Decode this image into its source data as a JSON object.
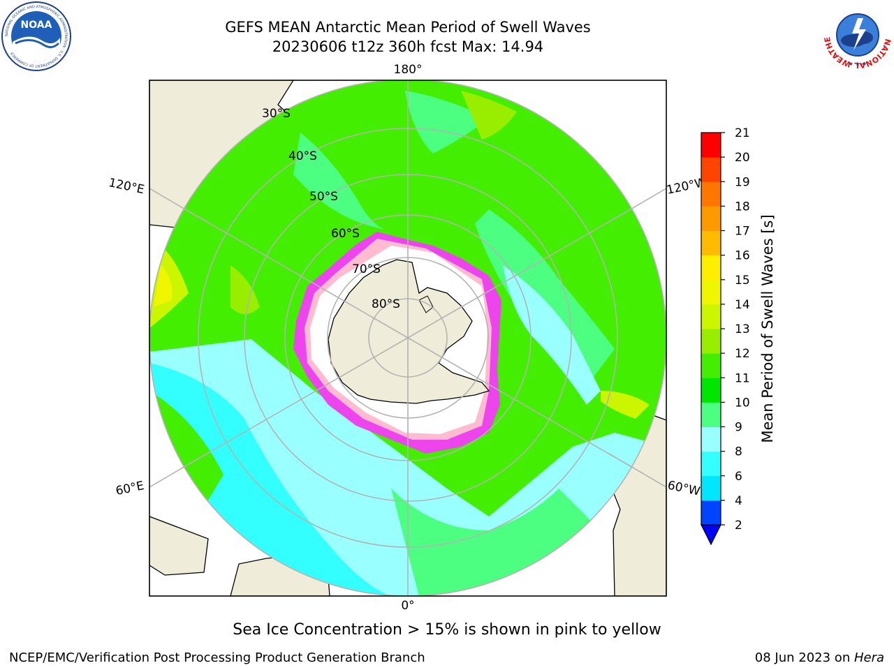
{
  "title": {
    "line1": "GEFS MEAN Antarctic Mean Period of Swell Waves",
    "line2": "20230606 t12z 360h fcst   Max: 14.94"
  },
  "logos": {
    "left": {
      "icon": "noaa-logo-icon",
      "text": "NOAA",
      "ring_text": "NATIONAL OCEANIC AND ATMOSPHERIC ADMINISTRATION · U.S. DEPARTMENT OF COMMERCE"
    },
    "right": {
      "icon": "nws-logo-icon",
      "ring_text": "NATIONAL WEATHER SERVICE"
    }
  },
  "map": {
    "projection": "south polar stereographic",
    "longitude_labels": [
      "180°",
      "120°E",
      "120°W",
      "60°E",
      "60°W",
      "0°"
    ],
    "latitude_labels": [
      "30°S",
      "40°S",
      "50°S",
      "60°S",
      "70°S",
      "80°S"
    ]
  },
  "colorbar": {
    "label": "Mean Period of Swell Waves [s]",
    "ticks": [
      2,
      4,
      6,
      8,
      9,
      10,
      11,
      12,
      13,
      14,
      15,
      16,
      17,
      18,
      19,
      20,
      21
    ],
    "colors": [
      "#0044ff",
      "#00e6ff",
      "#33ffff",
      "#99ffff",
      "#4dff80",
      "#00e600",
      "#44ee00",
      "#99ee00",
      "#ccf500",
      "#f0f500",
      "#ffee00",
      "#ffbb00",
      "#ff9900",
      "#ff7700",
      "#ff4400",
      "#ff0000"
    ],
    "extend_low_color": "#0000ff"
  },
  "ice_note": "Sea Ice Concentration > 15% is shown in pink to yellow",
  "footer": {
    "left": "NCEP/EMC/Verification Post Processing Product Generation Branch",
    "right_date": "08 Jun 2023 on ",
    "right_host": "Hera"
  }
}
